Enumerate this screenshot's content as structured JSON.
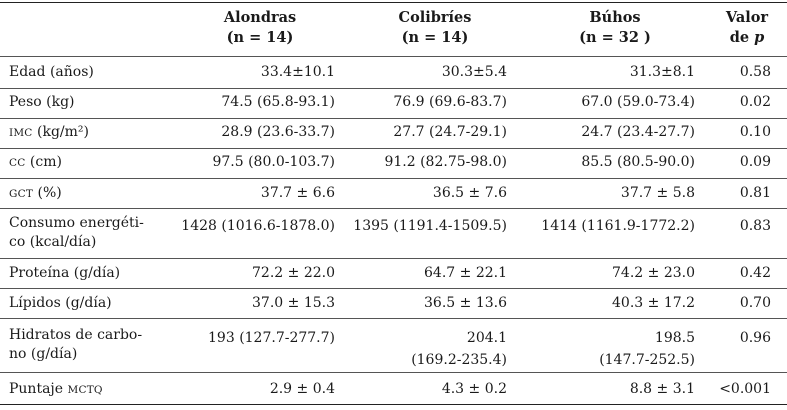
{
  "header": {
    "col1": {
      "name": "Alondras",
      "n": "(n = 14)"
    },
    "col2": {
      "name": "Colibríes",
      "n": "(n = 14)"
    },
    "col3": {
      "name": "Búhos",
      "n": "(n = 32 )"
    },
    "col4": {
      "line1": "Valor",
      "line2_prefix": "de ",
      "line2_italic": "p"
    }
  },
  "rows": [
    {
      "label": "Edad (años)",
      "alondras": "33.4±10.1",
      "colibries": "30.3±5.4",
      "buhos": "31.3±8.1",
      "p": "0.58"
    },
    {
      "label": "Peso (kg)",
      "alondras": "74.5 (65.8-93.1)",
      "colibries": "76.9 (69.6-83.7)",
      "buhos": "67.0 (59.0-73.4)",
      "p": "0.02"
    },
    {
      "label_sc": "IMC",
      "label_rest": " (kg/m²)",
      "alondras": "28.9 (23.6-33.7)",
      "colibries": "27.7 (24.7-29.1)",
      "buhos": "24.7 (23.4-27.7)",
      "p": "0.10"
    },
    {
      "label_sc": "CC",
      "label_rest": " (cm)",
      "alondras": "97.5 (80.0-103.7)",
      "colibries": "91.2 (82.75-98.0)",
      "buhos": "85.5 (80.5-90.0)",
      "p": "0.09"
    },
    {
      "label_sc": "GCT",
      "label_rest": " (%)",
      "alondras": "37.7 ± 6.6",
      "colibries": "36.5 ± 7.6",
      "buhos": "37.7 ± 5.8",
      "p": "0.81"
    },
    {
      "label_line1": "Consumo energéti-",
      "label_line2": "co (kcal/día)",
      "alondras": "1428 (1016.6-1878.0)",
      "colibries": "1395 (1191.4-1509.5)",
      "buhos": "1414 (1161.9-1772.2)",
      "p": "0.83"
    },
    {
      "label": "Proteína (g/día)",
      "alondras": "72.2 ± 22.0",
      "colibries": "64.7 ± 22.1",
      "buhos": "74.2 ± 23.0",
      "p": "0.42"
    },
    {
      "label": "Lípidos (g/día)",
      "alondras": "37.0 ± 15.3",
      "colibries": "36.5 ± 13.6",
      "buhos": "40.3 ± 17.2",
      "p": "0.70"
    },
    {
      "label_line1": "Hidratos de carbo-",
      "label_line2": "no (g/día)",
      "alondras": "193 (127.7-277.7)",
      "colibries_line1": "204.1",
      "colibries_line2": "(169.2-235.4)",
      "buhos_line1": "198.5",
      "buhos_line2": "(147.7-252.5)",
      "p": "0.96"
    },
    {
      "label_prefix": "Puntaje ",
      "label_sc": "MCTQ",
      "alondras": "2.9 ± 0.4",
      "colibries": "4.3 ± 0.2",
      "buhos": "8.8 ± 3.1",
      "p": "<0.001"
    }
  ]
}
